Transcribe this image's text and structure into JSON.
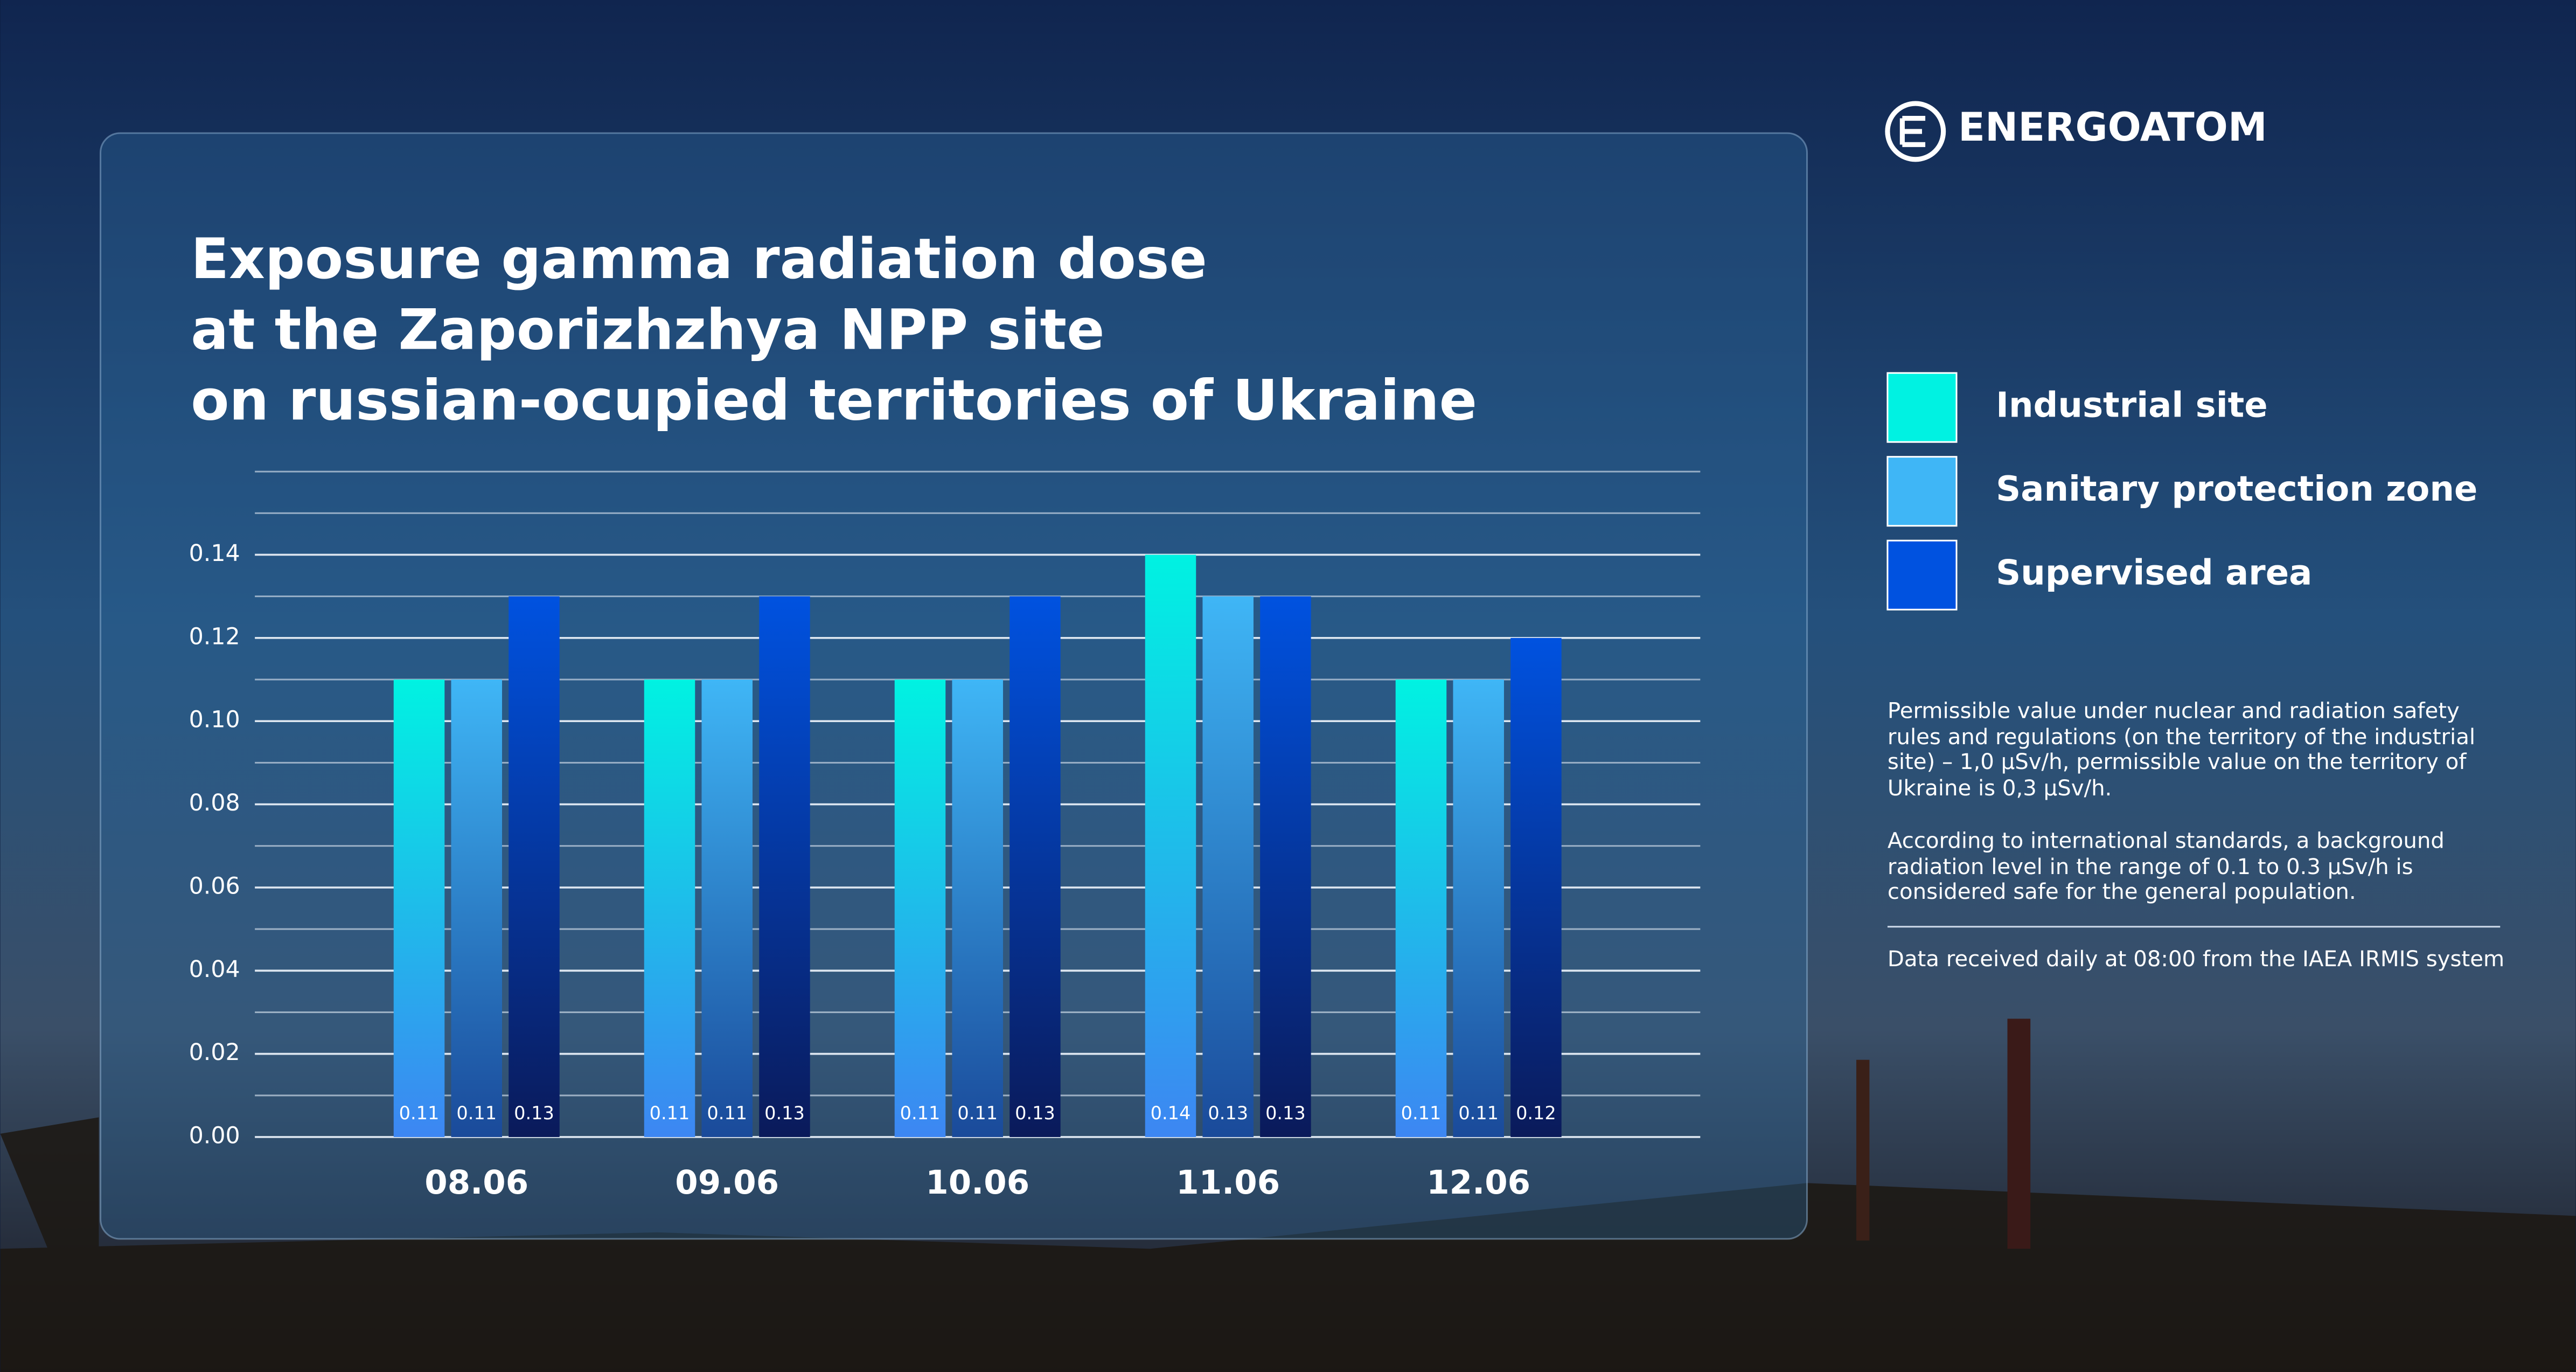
{
  "brand": "ENERGOATOM",
  "chart_data": {
    "type": "bar",
    "title": [
      "Exposure gamma radiation dose",
      "at the Zaporizhzhya NPP site",
      "on russian-ocupied territories of Ukraine"
    ],
    "categories": [
      "08.06",
      "09.06",
      "10.06",
      "11.06",
      "12.06"
    ],
    "series": [
      {
        "name": "Industrial site",
        "color": "#00f2e2",
        "values": [
          0.11,
          0.11,
          0.11,
          0.14,
          0.11
        ]
      },
      {
        "name": "Sanitary protection zone",
        "color": "#3fb6f6",
        "values": [
          0.11,
          0.11,
          0.11,
          0.13,
          0.11
        ]
      },
      {
        "name": "Supervised area",
        "color": "#0052e0",
        "values": [
          0.13,
          0.13,
          0.13,
          0.13,
          0.12
        ]
      }
    ],
    "ylim": [
      0,
      0.16
    ],
    "yticks": [
      {
        "value": 0,
        "label": "0.00"
      },
      {
        "value": 0.02,
        "label": "0.02"
      },
      {
        "value": 0.04,
        "label": "0.04"
      },
      {
        "value": 0.06,
        "label": "0.06"
      },
      {
        "value": 0.08,
        "label": "0.08"
      },
      {
        "value": 0.1,
        "label": "0.10"
      },
      {
        "value": 0.12,
        "label": "0.12"
      },
      {
        "value": 0.14,
        "label": "0.14"
      }
    ],
    "minor_yticks": [
      0.01,
      0.03,
      0.05,
      0.07,
      0.09,
      0.11,
      0.13,
      0.15,
      0.16
    ],
    "grid": true,
    "legend": "right"
  },
  "notes": [
    "Permissible value under nuclear and radiation safety rules and regulations (on the territory of the industrial site) – 1,0 µSv/h, permissible value on the territory of Ukraine is 0,3 µSv/h.",
    "According to international standards, a background radiation level in the range of 0.1 to 0.3 µSv/h is considered safe for the general population.",
    "Data received daily at 08:00 from the IAEA IRMIS system"
  ]
}
